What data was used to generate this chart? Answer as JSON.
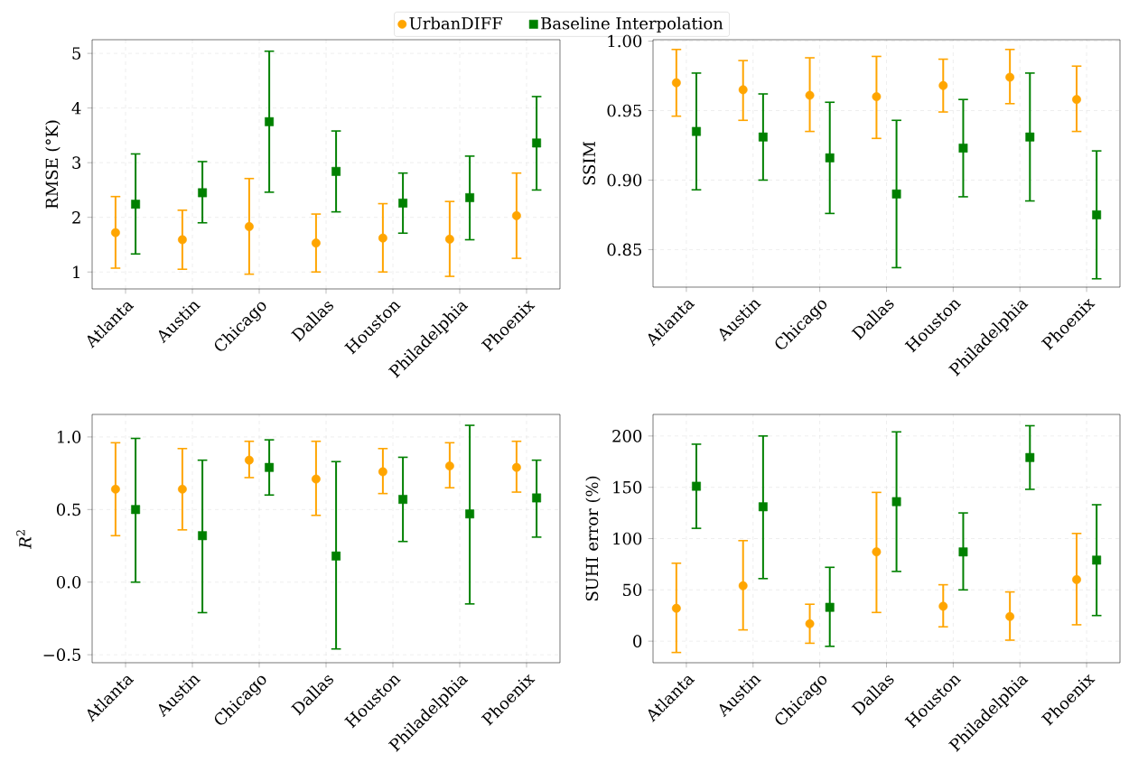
{
  "chart_data": [
    {
      "type": "scatter",
      "ylabel": "RMSE (°K)",
      "categories": [
        "Atlanta",
        "Austin",
        "Chicago",
        "Dallas",
        "Houston",
        "Philadelphia",
        "Phoenix"
      ],
      "ylim": [
        0.69,
        5.25
      ],
      "yticks": [
        1,
        2,
        3,
        4,
        5
      ],
      "grid": true,
      "legend": "top",
      "series": [
        {
          "name": "UrbanDIFF",
          "color": "#ffa500",
          "marker": "circle",
          "values": [
            1.72,
            1.59,
            1.83,
            1.53,
            1.62,
            1.6,
            2.03
          ],
          "errors": [
            [
              1.07,
              2.38
            ],
            [
              1.05,
              2.13
            ],
            [
              0.96,
              2.71
            ],
            [
              1.0,
              2.06
            ],
            [
              1.0,
              2.25
            ],
            [
              0.92,
              2.29
            ],
            [
              1.25,
              2.81
            ]
          ]
        },
        {
          "name": "Baseline Interpolation",
          "color": "#008000",
          "marker": "square",
          "values": [
            2.24,
            2.45,
            3.75,
            2.84,
            2.26,
            2.36,
            3.36
          ],
          "errors": [
            [
              1.33,
              3.16
            ],
            [
              1.9,
              3.02
            ],
            [
              2.46,
              5.04
            ],
            [
              2.1,
              3.58
            ],
            [
              1.71,
              2.81
            ],
            [
              1.59,
              3.12
            ],
            [
              2.5,
              4.21
            ]
          ]
        }
      ]
    },
    {
      "type": "scatter",
      "ylabel": "SSIM",
      "categories": [
        "Atlanta",
        "Austin",
        "Chicago",
        "Dallas",
        "Houston",
        "Philadelphia",
        "Phoenix"
      ],
      "ylim": [
        0.823,
        1.001
      ],
      "yticks": [
        {
          "value": 0.85,
          "label": "0.85"
        },
        {
          "value": 0.9,
          "label": "0.90"
        },
        {
          "value": 0.95,
          "label": "0.95"
        },
        {
          "value": 1.0,
          "label": "1.00"
        }
      ],
      "grid": true,
      "series": [
        {
          "color": "#ffa500",
          "marker": "circle",
          "values": [
            0.97,
            0.965,
            0.961,
            0.96,
            0.968,
            0.974,
            0.958
          ],
          "errors": [
            [
              0.946,
              0.994
            ],
            [
              0.943,
              0.986
            ],
            [
              0.935,
              0.988
            ],
            [
              0.93,
              0.989
            ],
            [
              0.949,
              0.987
            ],
            [
              0.955,
              0.994
            ],
            [
              0.935,
              0.982
            ]
          ]
        },
        {
          "color": "#008000",
          "marker": "square",
          "values": [
            0.935,
            0.931,
            0.916,
            0.89,
            0.923,
            0.931,
            0.875
          ],
          "errors": [
            [
              0.893,
              0.977
            ],
            [
              0.9,
              0.962
            ],
            [
              0.876,
              0.956
            ],
            [
              0.837,
              0.943
            ],
            [
              0.888,
              0.958
            ],
            [
              0.885,
              0.977
            ],
            [
              0.829,
              0.921
            ]
          ]
        }
      ]
    },
    {
      "type": "scatter",
      "ylabel": "*R*$^{2}$",
      "categories": [
        "Atlanta",
        "Austin",
        "Chicago",
        "Dallas",
        "Houston",
        "Philadelphia",
        "Phoenix"
      ],
      "ylim": [
        -0.555,
        1.155
      ],
      "yticks": [
        {
          "value": -0.5,
          "label": "−0.5"
        },
        {
          "value": 0,
          "label": "0.0"
        },
        {
          "value": 0.5,
          "label": "0.5"
        },
        {
          "value": 1.0,
          "label": "1.0"
        }
      ],
      "grid": true,
      "series": [
        {
          "color": "#ffa500",
          "marker": "circle",
          "values": [
            0.64,
            0.64,
            0.84,
            0.71,
            0.76,
            0.8,
            0.79
          ],
          "errors": [
            [
              0.32,
              0.96
            ],
            [
              0.36,
              0.92
            ],
            [
              0.72,
              0.97
            ],
            [
              0.46,
              0.97
            ],
            [
              0.61,
              0.92
            ],
            [
              0.65,
              0.96
            ],
            [
              0.62,
              0.97
            ]
          ]
        },
        {
          "color": "#008000",
          "marker": "square",
          "values": [
            0.5,
            0.32,
            0.79,
            0.18,
            0.57,
            0.47,
            0.58
          ],
          "errors": [
            [
              0.0,
              0.99
            ],
            [
              -0.21,
              0.84
            ],
            [
              0.6,
              0.98
            ],
            [
              -0.46,
              0.83
            ],
            [
              0.28,
              0.86
            ],
            [
              -0.15,
              1.08
            ],
            [
              0.31,
              0.84
            ]
          ]
        }
      ]
    },
    {
      "type": "scatter",
      "ylabel": "SUHI error (%)",
      "categories": [
        "Atlanta",
        "Austin",
        "Chicago",
        "Dallas",
        "Houston",
        "Philadelphia",
        "Phoenix"
      ],
      "ylim": [
        -21,
        221
      ],
      "yticks": [
        0,
        50,
        100,
        150,
        200
      ],
      "grid": true,
      "series": [
        {
          "color": "#ffa500",
          "marker": "circle",
          "values": [
            32,
            54,
            17,
            87,
            34,
            24,
            60
          ],
          "errors": [
            [
              -11,
              76
            ],
            [
              11,
              98
            ],
            [
              -2,
              36
            ],
            [
              28,
              145
            ],
            [
              14,
              55
            ],
            [
              1,
              48
            ],
            [
              16,
              105
            ]
          ]
        },
        {
          "color": "#008000",
          "marker": "square",
          "values": [
            151,
            131,
            33,
            136,
            87,
            179,
            79
          ],
          "errors": [
            [
              110,
              192
            ],
            [
              61,
              200
            ],
            [
              -5,
              72
            ],
            [
              68,
              204
            ],
            [
              50,
              125
            ],
            [
              148,
              210
            ],
            [
              25,
              133
            ]
          ]
        }
      ]
    }
  ]
}
